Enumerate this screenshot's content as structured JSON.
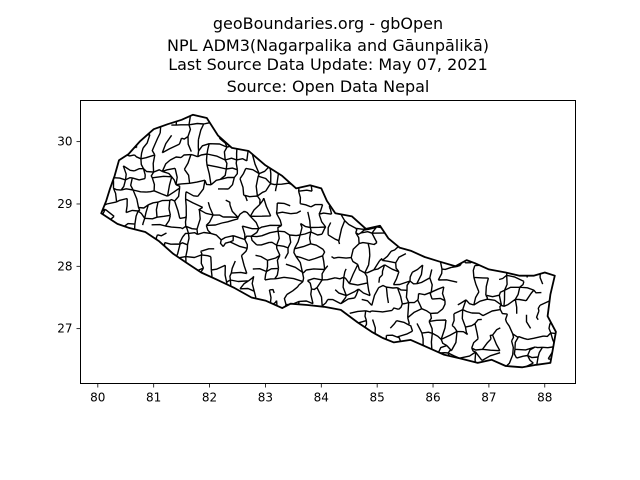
{
  "title_lines": [
    "geoBoundaries.org - gbOpen",
    "NPL ADM3(Nagarpalika and Gāunpālikā)",
    "Last Source Data Update: May 07, 2021",
    "Source: Open Data Nepal"
  ],
  "axes": {
    "x_ticks": [
      "80",
      "81",
      "82",
      "83",
      "84",
      "85",
      "86",
      "87",
      "88"
    ],
    "y_ticks": [
      "27",
      "28",
      "29",
      "30"
    ],
    "x_range": [
      79.69,
      88.55
    ],
    "y_range": [
      26.12,
      30.66
    ]
  },
  "map": {
    "boundary_color": "#000000",
    "fill": "none",
    "outline": [
      [
        80.06,
        28.85
      ],
      [
        80.15,
        29.05
      ],
      [
        80.22,
        29.25
      ],
      [
        80.3,
        29.45
      ],
      [
        80.38,
        29.7
      ],
      [
        80.55,
        29.8
      ],
      [
        80.75,
        30.0
      ],
      [
        81.0,
        30.2
      ],
      [
        81.25,
        30.28
      ],
      [
        81.5,
        30.35
      ],
      [
        81.7,
        30.43
      ],
      [
        81.95,
        30.38
      ],
      [
        82.15,
        30.1
      ],
      [
        82.4,
        29.9
      ],
      [
        82.7,
        29.85
      ],
      [
        83.0,
        29.62
      ],
      [
        83.3,
        29.45
      ],
      [
        83.55,
        29.25
      ],
      [
        83.8,
        29.3
      ],
      [
        84.0,
        29.25
      ],
      [
        84.1,
        29.05
      ],
      [
        84.25,
        28.85
      ],
      [
        84.55,
        28.8
      ],
      [
        84.8,
        28.6
      ],
      [
        85.05,
        28.65
      ],
      [
        85.2,
        28.45
      ],
      [
        85.4,
        28.3
      ],
      [
        85.6,
        28.25
      ],
      [
        85.85,
        28.15
      ],
      [
        86.1,
        28.08
      ],
      [
        86.4,
        28.0
      ],
      [
        86.6,
        28.1
      ],
      [
        86.75,
        28.05
      ],
      [
        87.0,
        27.95
      ],
      [
        87.3,
        27.9
      ],
      [
        87.55,
        27.85
      ],
      [
        87.8,
        27.85
      ],
      [
        88.0,
        27.9
      ],
      [
        88.18,
        27.85
      ],
      [
        88.1,
        27.55
      ],
      [
        88.05,
        27.2
      ],
      [
        88.2,
        26.95
      ],
      [
        88.15,
        26.7
      ],
      [
        88.1,
        26.45
      ],
      [
        87.85,
        26.42
      ],
      [
        87.6,
        26.38
      ],
      [
        87.3,
        26.4
      ],
      [
        87.05,
        26.5
      ],
      [
        86.8,
        26.45
      ],
      [
        86.5,
        26.52
      ],
      [
        86.2,
        26.58
      ],
      [
        85.9,
        26.7
      ],
      [
        85.6,
        26.82
      ],
      [
        85.3,
        26.78
      ],
      [
        85.1,
        26.85
      ],
      [
        84.9,
        26.95
      ],
      [
        84.65,
        27.1
      ],
      [
        84.35,
        27.3
      ],
      [
        84.05,
        27.35
      ],
      [
        83.75,
        27.38
      ],
      [
        83.45,
        27.4
      ],
      [
        83.3,
        27.33
      ],
      [
        83.0,
        27.45
      ],
      [
        82.75,
        27.5
      ],
      [
        82.45,
        27.65
      ],
      [
        82.1,
        27.8
      ],
      [
        81.85,
        27.9
      ],
      [
        81.6,
        28.05
      ],
      [
        81.35,
        28.2
      ],
      [
        81.1,
        28.4
      ],
      [
        80.85,
        28.55
      ],
      [
        80.55,
        28.62
      ],
      [
        80.35,
        28.68
      ],
      [
        80.06,
        28.85
      ]
    ]
  }
}
